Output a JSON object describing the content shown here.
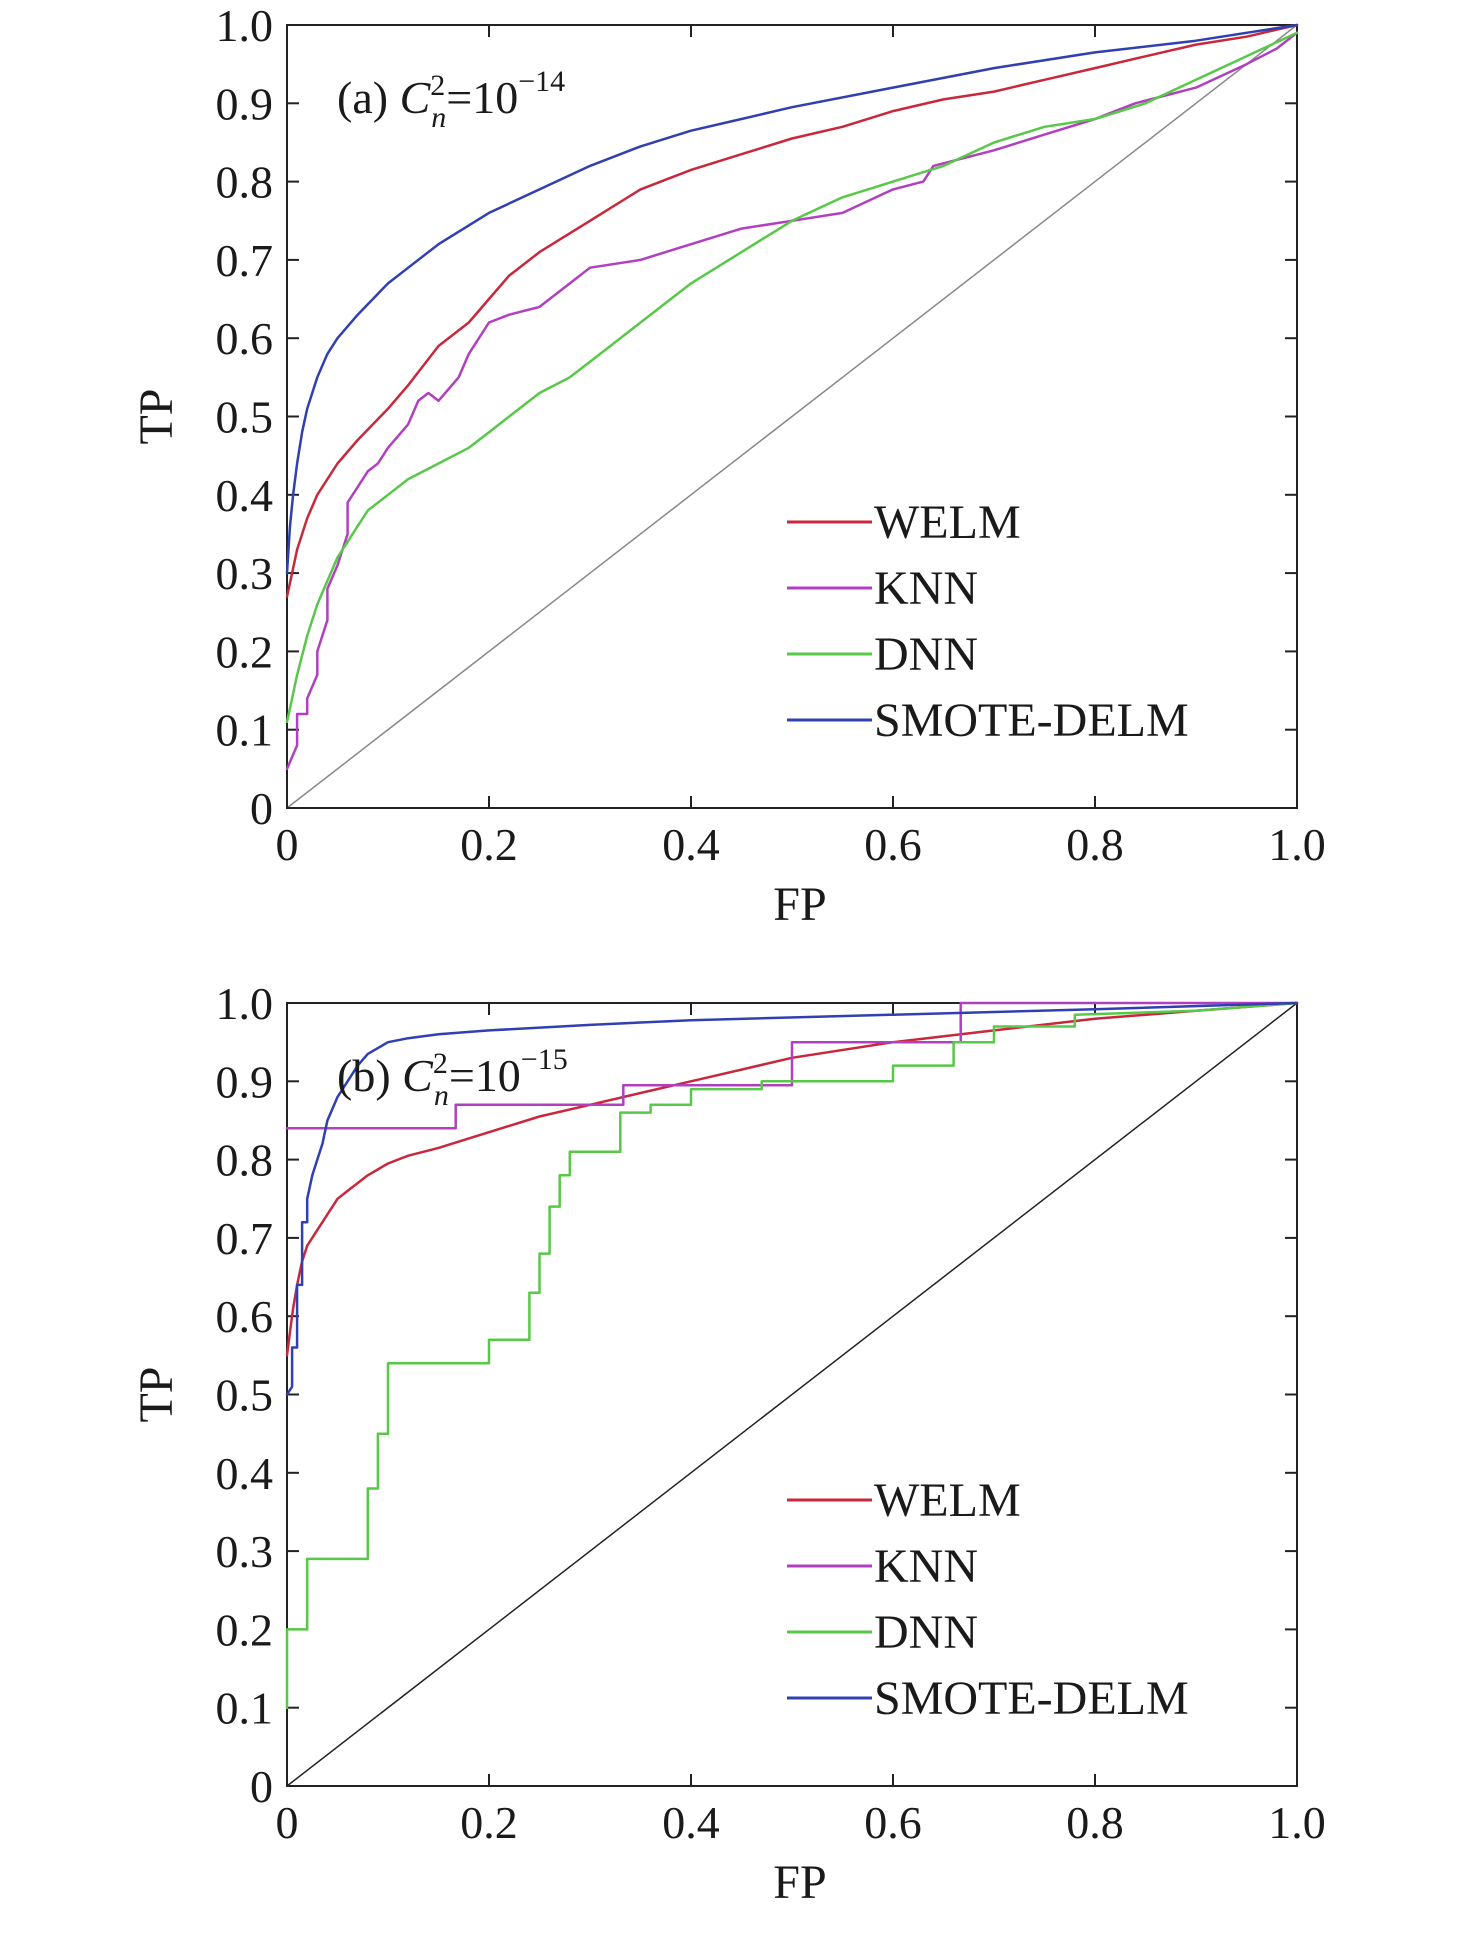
{
  "chart_data": [
    {
      "type": "line",
      "panel_label": {
        "prefix": "(a) ",
        "symbol": "C",
        "symbol_sub": "n",
        "symbol_sup": "2",
        "equals": "=10",
        "exponent": "−14"
      },
      "xlabel": "FP",
      "ylabel": "TP",
      "xlim": [
        0,
        1
      ],
      "ylim": [
        0,
        1
      ],
      "x_ticks": [
        0,
        0.2,
        0.4,
        0.6,
        0.8,
        1.0
      ],
      "x_tick_labels": [
        "0",
        "0.2",
        "0.4",
        "0.6",
        "0.8",
        "1.0"
      ],
      "y_ticks": [
        0,
        0.1,
        0.2,
        0.3,
        0.4,
        0.5,
        0.6,
        0.7,
        0.8,
        0.9,
        1.0
      ],
      "y_tick_labels": [
        "0",
        "0.1",
        "0.2",
        "0.3",
        "0.4",
        "0.5",
        "0.6",
        "0.7",
        "0.8",
        "0.9",
        "1.0"
      ],
      "grid": false,
      "legend_position": "bottom-right",
      "diagonal": {
        "x": [
          0,
          1
        ],
        "y": [
          0,
          1
        ],
        "color": "#888888"
      },
      "series": [
        {
          "name": "WELM",
          "color": "#c8283c",
          "x": [
            0,
            0.005,
            0.01,
            0.02,
            0.03,
            0.05,
            0.07,
            0.1,
            0.12,
            0.15,
            0.18,
            0.2,
            0.22,
            0.25,
            0.3,
            0.35,
            0.4,
            0.45,
            0.5,
            0.55,
            0.6,
            0.65,
            0.7,
            0.75,
            0.8,
            0.85,
            0.9,
            0.95,
            1.0
          ],
          "y": [
            0.27,
            0.3,
            0.33,
            0.37,
            0.4,
            0.44,
            0.47,
            0.51,
            0.54,
            0.59,
            0.62,
            0.65,
            0.68,
            0.71,
            0.75,
            0.79,
            0.815,
            0.835,
            0.855,
            0.87,
            0.89,
            0.905,
            0.915,
            0.93,
            0.945,
            0.96,
            0.975,
            0.985,
            1.0
          ]
        },
        {
          "name": "KNN",
          "color": "#b040c0",
          "x": [
            0,
            0.01,
            0.01,
            0.02,
            0.02,
            0.03,
            0.03,
            0.04,
            0.04,
            0.05,
            0.06,
            0.06,
            0.07,
            0.08,
            0.09,
            0.1,
            0.12,
            0.13,
            0.14,
            0.15,
            0.17,
            0.18,
            0.2,
            0.22,
            0.25,
            0.28,
            0.3,
            0.35,
            0.4,
            0.45,
            0.5,
            0.55,
            0.6,
            0.63,
            0.64,
            0.7,
            0.75,
            0.8,
            0.82,
            0.84,
            0.9,
            0.95,
            0.98,
            1.0
          ],
          "y": [
            0.05,
            0.08,
            0.12,
            0.12,
            0.14,
            0.17,
            0.2,
            0.24,
            0.28,
            0.31,
            0.35,
            0.39,
            0.41,
            0.43,
            0.44,
            0.46,
            0.49,
            0.52,
            0.53,
            0.52,
            0.55,
            0.58,
            0.62,
            0.63,
            0.64,
            0.67,
            0.69,
            0.7,
            0.72,
            0.74,
            0.75,
            0.76,
            0.79,
            0.8,
            0.82,
            0.84,
            0.86,
            0.88,
            0.89,
            0.9,
            0.92,
            0.95,
            0.97,
            0.99
          ]
        },
        {
          "name": "DNN",
          "color": "#58c848",
          "x": [
            0,
            0.005,
            0.01,
            0.02,
            0.03,
            0.04,
            0.05,
            0.06,
            0.07,
            0.08,
            0.1,
            0.12,
            0.15,
            0.18,
            0.2,
            0.22,
            0.25,
            0.28,
            0.3,
            0.33,
            0.35,
            0.38,
            0.4,
            0.45,
            0.5,
            0.55,
            0.6,
            0.65,
            0.7,
            0.75,
            0.8,
            0.85,
            0.9,
            0.95,
            1.0
          ],
          "y": [
            0.11,
            0.14,
            0.17,
            0.22,
            0.26,
            0.29,
            0.32,
            0.34,
            0.36,
            0.38,
            0.4,
            0.42,
            0.44,
            0.46,
            0.48,
            0.5,
            0.53,
            0.55,
            0.57,
            0.6,
            0.62,
            0.65,
            0.67,
            0.71,
            0.75,
            0.78,
            0.8,
            0.82,
            0.85,
            0.87,
            0.88,
            0.9,
            0.93,
            0.96,
            0.99
          ]
        },
        {
          "name": "SMOTE-DELM",
          "color": "#3040b0",
          "x": [
            0,
            0.003,
            0.006,
            0.01,
            0.015,
            0.02,
            0.03,
            0.04,
            0.05,
            0.07,
            0.1,
            0.12,
            0.15,
            0.2,
            0.25,
            0.3,
            0.35,
            0.4,
            0.45,
            0.5,
            0.6,
            0.7,
            0.8,
            0.9,
            1.0
          ],
          "y": [
            0.3,
            0.36,
            0.4,
            0.44,
            0.48,
            0.51,
            0.55,
            0.58,
            0.6,
            0.63,
            0.67,
            0.69,
            0.72,
            0.76,
            0.79,
            0.82,
            0.845,
            0.865,
            0.88,
            0.895,
            0.92,
            0.945,
            0.965,
            0.98,
            1.0
          ]
        }
      ]
    },
    {
      "type": "line",
      "panel_label": {
        "prefix": "(b) ",
        "symbol": "C",
        "symbol_sub": "n",
        "symbol_sup": "2",
        "equals": "=10",
        "exponent": "−15"
      },
      "xlabel": "FP",
      "ylabel": "TP",
      "xlim": [
        0,
        1
      ],
      "ylim": [
        0,
        1
      ],
      "x_ticks": [
        0,
        0.2,
        0.4,
        0.6,
        0.8,
        1.0
      ],
      "x_tick_labels": [
        "0",
        "0.2",
        "0.4",
        "0.6",
        "0.8",
        "1.0"
      ],
      "y_ticks": [
        0,
        0.1,
        0.2,
        0.3,
        0.4,
        0.5,
        0.6,
        0.7,
        0.8,
        0.9,
        1.0
      ],
      "y_tick_labels": [
        "0",
        "0.1",
        "0.2",
        "0.3",
        "0.4",
        "0.5",
        "0.6",
        "0.7",
        "0.8",
        "0.9",
        "1.0"
      ],
      "grid": false,
      "legend_position": "bottom-right",
      "diagonal": {
        "x": [
          0,
          1
        ],
        "y": [
          0,
          1
        ],
        "color": "#222222"
      },
      "series": [
        {
          "name": "WELM",
          "color": "#c8283c",
          "x": [
            0,
            0.003,
            0.006,
            0.01,
            0.015,
            0.02,
            0.03,
            0.04,
            0.05,
            0.06,
            0.08,
            0.1,
            0.12,
            0.15,
            0.2,
            0.25,
            0.3,
            0.35,
            0.4,
            0.45,
            0.5,
            0.6,
            0.7,
            0.8,
            0.9,
            1.0
          ],
          "y": [
            0.55,
            0.58,
            0.61,
            0.64,
            0.67,
            0.69,
            0.71,
            0.73,
            0.75,
            0.76,
            0.78,
            0.795,
            0.805,
            0.815,
            0.835,
            0.855,
            0.87,
            0.885,
            0.9,
            0.915,
            0.93,
            0.95,
            0.965,
            0.98,
            0.99,
            1.0
          ]
        },
        {
          "name": "KNN",
          "color": "#b040c0",
          "x": [
            0,
            0.167,
            0.167,
            0.333,
            0.333,
            0.5,
            0.5,
            0.667,
            0.667,
            1.0
          ],
          "y": [
            0.84,
            0.84,
            0.87,
            0.87,
            0.895,
            0.895,
            0.95,
            0.95,
            1.0,
            1.0
          ]
        },
        {
          "name": "DNN",
          "color": "#58c848",
          "x": [
            0,
            0,
            0.02,
            0.02,
            0.08,
            0.08,
            0.09,
            0.09,
            0.1,
            0.1,
            0.2,
            0.2,
            0.24,
            0.24,
            0.25,
            0.25,
            0.26,
            0.26,
            0.27,
            0.27,
            0.28,
            0.28,
            0.33,
            0.33,
            0.36,
            0.36,
            0.4,
            0.4,
            0.47,
            0.47,
            0.6,
            0.6,
            0.66,
            0.66,
            0.7,
            0.7,
            0.78,
            0.78,
            0.9,
            1.0
          ],
          "y": [
            0.1,
            0.2,
            0.2,
            0.29,
            0.29,
            0.38,
            0.38,
            0.45,
            0.45,
            0.54,
            0.54,
            0.57,
            0.57,
            0.63,
            0.63,
            0.68,
            0.68,
            0.74,
            0.74,
            0.78,
            0.78,
            0.81,
            0.81,
            0.86,
            0.86,
            0.87,
            0.87,
            0.89,
            0.89,
            0.9,
            0.9,
            0.92,
            0.92,
            0.95,
            0.95,
            0.97,
            0.97,
            0.985,
            0.99,
            1.0
          ]
        },
        {
          "name": "SMOTE-DELM",
          "color": "#3040b0",
          "x": [
            0,
            0.005,
            0.005,
            0.01,
            0.01,
            0.015,
            0.015,
            0.02,
            0.02,
            0.025,
            0.03,
            0.035,
            0.04,
            0.05,
            0.06,
            0.07,
            0.08,
            0.1,
            0.12,
            0.15,
            0.2,
            0.3,
            0.4,
            0.6,
            0.8,
            1.0
          ],
          "y": [
            0.5,
            0.51,
            0.56,
            0.56,
            0.64,
            0.64,
            0.72,
            0.72,
            0.75,
            0.78,
            0.8,
            0.82,
            0.85,
            0.88,
            0.9,
            0.92,
            0.935,
            0.95,
            0.955,
            0.96,
            0.965,
            0.972,
            0.978,
            0.985,
            0.992,
            1.0
          ]
        }
      ]
    }
  ]
}
